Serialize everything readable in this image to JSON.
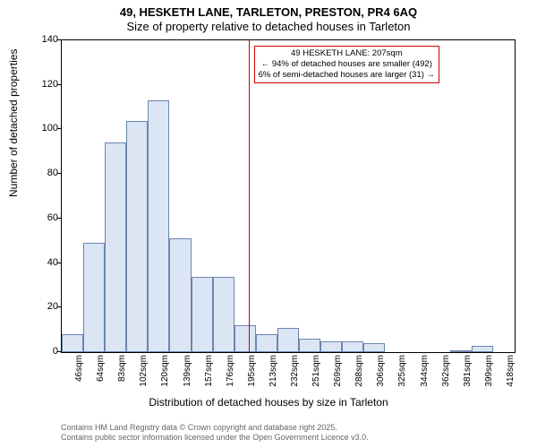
{
  "title_line1": "49, HESKETH LANE, TARLETON, PRESTON, PR4 6AQ",
  "title_line2": "Size of property relative to detached houses in Tarleton",
  "ylabel": "Number of detached properties",
  "xlabel": "Distribution of detached houses by size in Tarleton",
  "footer_line1": "Contains HM Land Registry data © Crown copyright and database right 2025.",
  "footer_line2": "Contains public sector information licensed under the Open Government Licence v3.0.",
  "chart": {
    "type": "histogram",
    "ylim": [
      0,
      140
    ],
    "yticks": [
      0,
      20,
      40,
      60,
      80,
      100,
      120,
      140
    ],
    "bar_fill": "#dbe5f3",
    "bar_border": "#6b86b0",
    "marker_color": "#d00000",
    "background_color": "#ffffff",
    "plot_border_color": "#000000",
    "title_fontsize": 13,
    "label_fontsize": 12,
    "tick_fontsize": 11,
    "xtick_fontsize": 10,
    "categories": [
      "46sqm",
      "64sqm",
      "83sqm",
      "102sqm",
      "120sqm",
      "139sqm",
      "157sqm",
      "176sqm",
      "195sqm",
      "213sqm",
      "232sqm",
      "251sqm",
      "269sqm",
      "288sqm",
      "306sqm",
      "325sqm",
      "344sqm",
      "362sqm",
      "381sqm",
      "399sqm",
      "418sqm"
    ],
    "values": [
      8,
      49,
      94,
      104,
      113,
      51,
      34,
      34,
      12,
      8,
      11,
      6,
      5,
      5,
      4,
      0,
      0,
      0,
      1,
      3,
      0
    ],
    "marker_value_x": 207,
    "x_min": 46,
    "x_step": 18.6
  },
  "annotation": {
    "line1": "49 HESKETH LANE: 207sqm",
    "line2": "← 94% of detached houses are smaller (492)",
    "line3": "6% of semi-detached houses are larger (31) →"
  }
}
